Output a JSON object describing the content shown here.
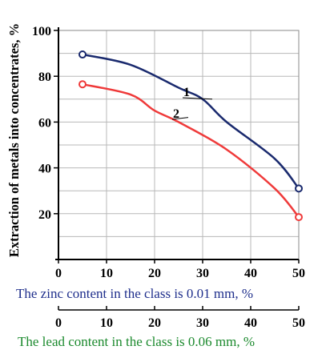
{
  "colors": {
    "series1": "#1a2a6e",
    "series2": "#ef3a3a",
    "grid": "#b8b8b8",
    "zinc_axis_label": "#1f2f8c",
    "lead_axis_label": "#1c8a2e"
  },
  "chart_data": {
    "type": "line",
    "ylabel": "Extraction of metals into concentrates, %",
    "xlabel": "The zinc content in the class is 0.01 mm, %",
    "xlabel2": "The lead content in the class is 0.06 mm, %",
    "xlim": [
      0,
      50
    ],
    "ylim": [
      0,
      100
    ],
    "grid": true,
    "y_ticks": [
      20,
      40,
      60,
      80,
      100
    ],
    "x_ticks": [
      0,
      10,
      20,
      30,
      40,
      50
    ],
    "x2_ticks": [
      0,
      10,
      20,
      30,
      40,
      50
    ],
    "series": [
      {
        "name": "1",
        "color": "#1a2a6e",
        "points": [
          [
            5,
            89.5
          ],
          [
            15,
            85
          ],
          [
            25,
            75
          ],
          [
            30,
            70
          ],
          [
            35,
            60
          ],
          [
            45,
            44
          ],
          [
            50,
            31
          ]
        ]
      },
      {
        "name": "2",
        "color": "#ef3a3a",
        "points": [
          [
            5,
            76.5
          ],
          [
            15,
            72
          ],
          [
            20,
            65
          ],
          [
            25,
            60
          ],
          [
            35,
            48
          ],
          [
            45,
            31
          ],
          [
            50,
            18.5
          ]
        ]
      }
    ]
  }
}
